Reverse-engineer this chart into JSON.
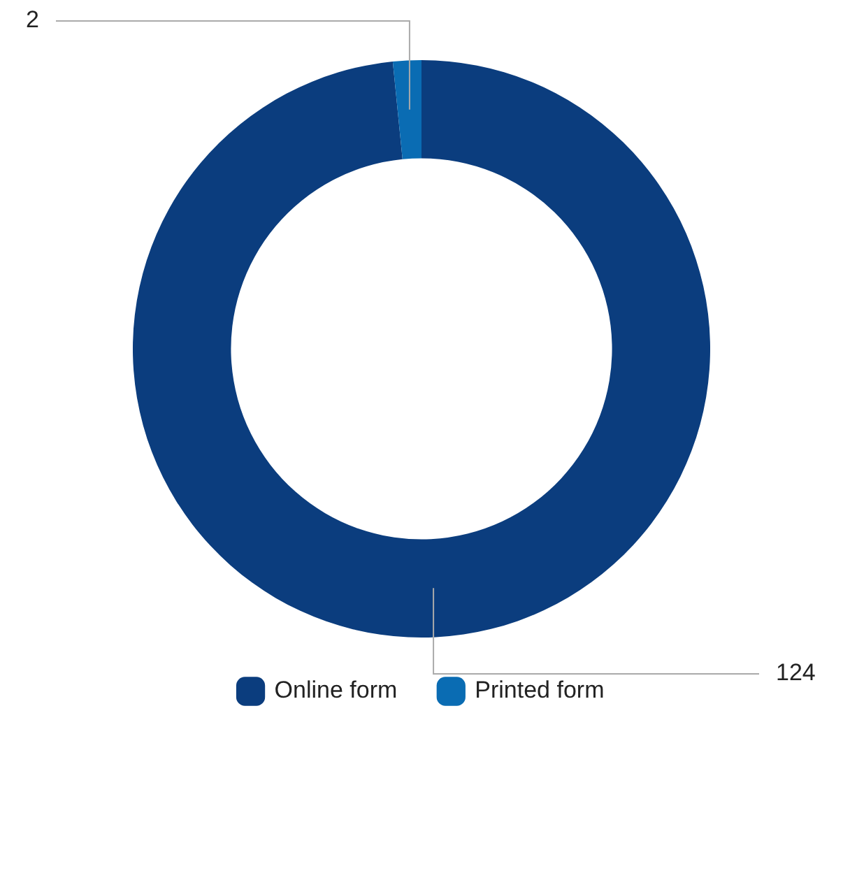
{
  "chart_data": {
    "type": "donut",
    "categories": [
      "Online form",
      "Printed form"
    ],
    "values": [
      124,
      2
    ],
    "colors": [
      "#0b3d7e",
      "#0a6cb3"
    ],
    "data_labels": true,
    "legend": "bottom"
  }
}
